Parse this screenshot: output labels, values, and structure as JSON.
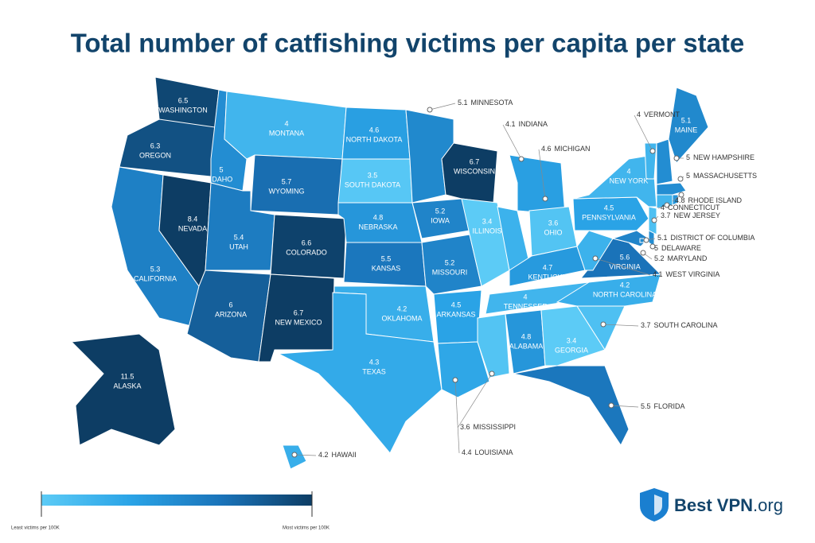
{
  "chart_data": {
    "type": "map",
    "title": "Total number of catfishing victims per capita per state",
    "regions": [
      {
        "name": "WASHINGTON",
        "value": 6.5
      },
      {
        "name": "OREGON",
        "value": 6.3
      },
      {
        "name": "CALIFORNIA",
        "value": 5.3
      },
      {
        "name": "NEVADA",
        "value": 8.4
      },
      {
        "name": "IDAHO",
        "value": 5
      },
      {
        "name": "MONTANA",
        "value": 4
      },
      {
        "name": "WYOMING",
        "value": 5.7
      },
      {
        "name": "UTAH",
        "value": 5.4
      },
      {
        "name": "COLORADO",
        "value": 6.6
      },
      {
        "name": "ARIZONA",
        "value": 6
      },
      {
        "name": "NEW MEXICO",
        "value": 6.7
      },
      {
        "name": "NORTH DAKOTA",
        "value": 4.6
      },
      {
        "name": "SOUTH DAKOTA",
        "value": 3.5
      },
      {
        "name": "NEBRASKA",
        "value": 4.8
      },
      {
        "name": "KANSAS",
        "value": 5.5
      },
      {
        "name": "OKLAHOMA",
        "value": 4.2
      },
      {
        "name": "TEXAS",
        "value": 4.3
      },
      {
        "name": "MINNESOTA",
        "value": 5.1
      },
      {
        "name": "IOWA",
        "value": 5.2
      },
      {
        "name": "MISSOURI",
        "value": 5.2
      },
      {
        "name": "ARKANSAS",
        "value": 4.5
      },
      {
        "name": "LOUISIANA",
        "value": 4.4
      },
      {
        "name": "WISCONSIN",
        "value": 6.7
      },
      {
        "name": "ILLINOIS",
        "value": 3.4
      },
      {
        "name": "MICHIGAN",
        "value": 4.6
      },
      {
        "name": "INDIANA",
        "value": 4.1
      },
      {
        "name": "OHIO",
        "value": 3.6
      },
      {
        "name": "KENTUCKY",
        "value": 4.7
      },
      {
        "name": "TENNESSEE",
        "value": 4
      },
      {
        "name": "MISSISSIPPI",
        "value": 3.6
      },
      {
        "name": "ALABAMA",
        "value": 4.8
      },
      {
        "name": "GEORGIA",
        "value": 3.4
      },
      {
        "name": "FLORIDA",
        "value": 5.5
      },
      {
        "name": "SOUTH CAROLINA",
        "value": 3.7
      },
      {
        "name": "NORTH CAROLINA",
        "value": 4.2
      },
      {
        "name": "VIRGINIA",
        "value": 5.6
      },
      {
        "name": "WEST VIRGINIA",
        "value": 4.1
      },
      {
        "name": "MARYLAND",
        "value": 5.2
      },
      {
        "name": "DELAWARE",
        "value": 5
      },
      {
        "name": "DISTRICT OF COLUMBIA",
        "value": 5.1
      },
      {
        "name": "PENNSYLVANIA",
        "value": 4.5
      },
      {
        "name": "NEW JERSEY",
        "value": 3.7
      },
      {
        "name": "NEW YORK",
        "value": 4
      },
      {
        "name": "CONNECTICUT",
        "value": 4
      },
      {
        "name": "RHODE ISLAND",
        "value": 4.8
      },
      {
        "name": "MASSACHUSETTS",
        "value": 5
      },
      {
        "name": "VERMONT",
        "value": 4
      },
      {
        "name": "NEW HAMPSHIRE",
        "value": 5
      },
      {
        "name": "MAINE",
        "value": 5.1
      },
      {
        "name": "ALASKA",
        "value": 11.5
      },
      {
        "name": "HAWAII",
        "value": 4.2
      }
    ],
    "legend": {
      "colors": [
        "#5ccbf6",
        "#2aa3e6",
        "#1a73b9",
        "#0d3d64"
      ],
      "min_label": "Least victims per 100K",
      "max_label": "Most victims per 100K"
    }
  },
  "brand": {
    "name": "Best VPN",
    "suffix": ".org"
  }
}
